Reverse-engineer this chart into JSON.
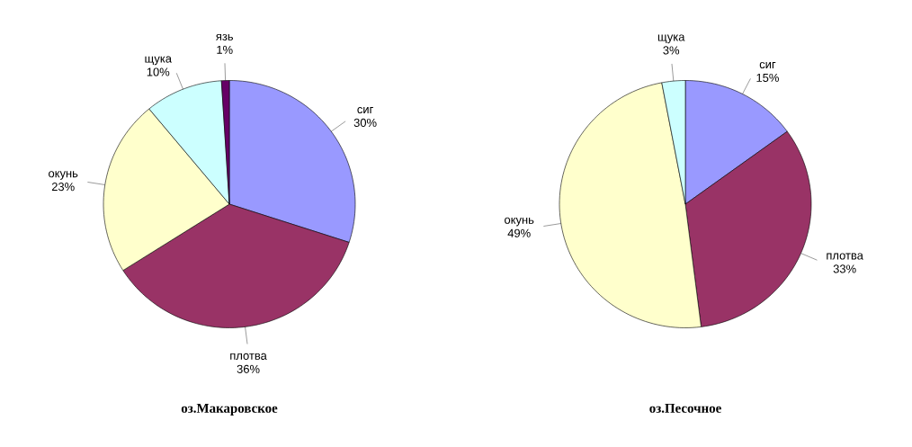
{
  "chart_data": [
    {
      "type": "pie",
      "title": "оз.Макаровское",
      "categories": [
        "сиг",
        "плотва",
        "окунь",
        "щука",
        "язь"
      ],
      "values": [
        30,
        36,
        23,
        10,
        1
      ],
      "value_labels": [
        "30%",
        "36%",
        "23%",
        "10%",
        "1%"
      ],
      "colors": [
        "#9999ff",
        "#993366",
        "#ffffcc",
        "#ccffff",
        "#660066"
      ]
    },
    {
      "type": "pie",
      "title": "оз.Песочное",
      "categories": [
        "сиг",
        "плотва",
        "окунь",
        "щука"
      ],
      "values": [
        15,
        33,
        49,
        3
      ],
      "value_labels": [
        "15%",
        "33%",
        "49%",
        "3%"
      ],
      "colors": [
        "#9999ff",
        "#993366",
        "#ffffcc",
        "#ccffff"
      ]
    }
  ]
}
